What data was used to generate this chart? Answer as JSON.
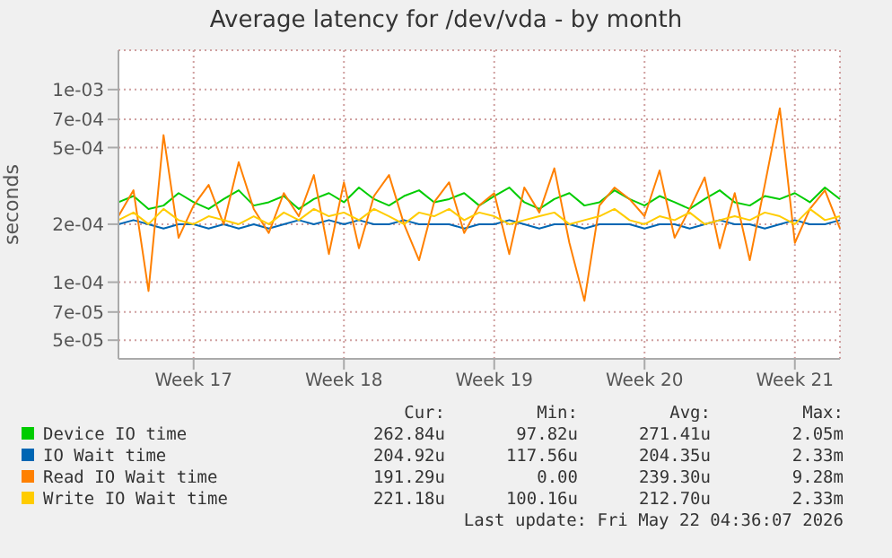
{
  "chart_data": {
    "type": "line",
    "title": "Average latency for /dev/vda - by month",
    "ylabel": "seconds",
    "categories": [
      null,
      null,
      null,
      null,
      null,
      "Week 17",
      null,
      null,
      null,
      null,
      null,
      null,
      null,
      null,
      null,
      "Week 18",
      null,
      null,
      null,
      null,
      null,
      null,
      null,
      null,
      null,
      "Week 19",
      null,
      null,
      null,
      null,
      null,
      null,
      null,
      null,
      null,
      "Week 20",
      null,
      null,
      null,
      null,
      null,
      null,
      null,
      null,
      null,
      "Week 21",
      null,
      null,
      null
    ],
    "log": "y",
    "ylim": [
      4e-05,
      0.0016
    ],
    "yticks": [
      {
        "value": 5e-05,
        "label": "5e-05"
      },
      {
        "value": 7e-05,
        "label": "7e-05"
      },
      {
        "value": 0.0001,
        "label": "1e-04"
      },
      {
        "value": 0.0002,
        "label": "2e-04"
      },
      {
        "value": 0.0005,
        "label": "5e-04"
      },
      {
        "value": 0.0007,
        "label": "7e-04"
      },
      {
        "value": 0.001,
        "label": "1e-03"
      }
    ],
    "grid": true,
    "legend": "bottom",
    "series": [
      {
        "name": "Device IO time",
        "color": "#00cc00",
        "values": [
          0.00026,
          0.00028,
          0.00024,
          0.00025,
          0.00029,
          0.00026,
          0.00024,
          0.00027,
          0.0003,
          0.00025,
          0.00026,
          0.00028,
          0.00024,
          0.00027,
          0.00029,
          0.00026,
          0.00031,
          0.00027,
          0.00025,
          0.00028,
          0.0003,
          0.00026,
          0.00027,
          0.00029,
          0.00025,
          0.00028,
          0.00031,
          0.00026,
          0.00024,
          0.00027,
          0.00029,
          0.00025,
          0.00026,
          0.0003,
          0.00027,
          0.00025,
          0.00028,
          0.00026,
          0.00024,
          0.00027,
          0.0003,
          0.00026,
          0.00025,
          0.00028,
          0.00027,
          0.00029,
          0.00026,
          0.00031,
          0.00027
        ]
      },
      {
        "name": "IO Wait time",
        "color": "#0066b3",
        "values": [
          0.0002,
          0.00021,
          0.0002,
          0.00019,
          0.0002,
          0.0002,
          0.00019,
          0.0002,
          0.00019,
          0.0002,
          0.00019,
          0.0002,
          0.00021,
          0.0002,
          0.00021,
          0.0002,
          0.00021,
          0.0002,
          0.0002,
          0.00021,
          0.0002,
          0.0002,
          0.0002,
          0.00019,
          0.0002,
          0.0002,
          0.00021,
          0.0002,
          0.00019,
          0.0002,
          0.0002,
          0.00019,
          0.0002,
          0.0002,
          0.0002,
          0.00019,
          0.0002,
          0.0002,
          0.00019,
          0.0002,
          0.00021,
          0.0002,
          0.0002,
          0.00019,
          0.0002,
          0.00021,
          0.0002,
          0.0002,
          0.00021
        ]
      },
      {
        "name": "Read IO Wait time",
        "color": "#ff8000",
        "values": [
          0.00022,
          0.0003,
          9e-05,
          0.00058,
          0.00017,
          0.00025,
          0.00032,
          0.0002,
          0.00042,
          0.00024,
          0.00018,
          0.00029,
          0.00022,
          0.00036,
          0.00014,
          0.00033,
          0.00015,
          0.00028,
          0.00036,
          0.0002,
          0.00013,
          0.00026,
          0.00033,
          0.00018,
          0.00025,
          0.00029,
          0.00014,
          0.00031,
          0.00023,
          0.00039,
          0.00016,
          8e-05,
          0.00025,
          0.00031,
          0.00027,
          0.00022,
          0.00038,
          0.00017,
          0.00024,
          0.00035,
          0.00015,
          0.00029,
          0.00013,
          0.00032,
          0.0008,
          0.00016,
          0.00024,
          0.0003,
          0.00019
        ]
      },
      {
        "name": "Write IO Wait time",
        "color": "#ffcc00",
        "values": [
          0.00021,
          0.00023,
          0.0002,
          0.00024,
          0.00021,
          0.0002,
          0.00022,
          0.00021,
          0.0002,
          0.00022,
          0.0002,
          0.00023,
          0.00021,
          0.00024,
          0.00022,
          0.00023,
          0.00021,
          0.00024,
          0.00022,
          0.0002,
          0.00023,
          0.00022,
          0.00024,
          0.00021,
          0.00023,
          0.00022,
          0.0002,
          0.00021,
          0.00022,
          0.00023,
          0.0002,
          0.00021,
          0.00022,
          0.00024,
          0.00021,
          0.0002,
          0.00022,
          0.00021,
          0.00023,
          0.0002,
          0.00021,
          0.00022,
          0.00021,
          0.00023,
          0.00022,
          0.0002,
          0.00024,
          0.00021,
          0.00022
        ]
      }
    ],
    "annotations": [
      "Cur:",
      "Min:",
      "Avg:",
      "Max:",
      "262.84u",
      "97.82u",
      "271.41u",
      "2.05m",
      "204.92u",
      "117.56u",
      "204.35u",
      "2.33m",
      "191.29u",
      "0.00",
      "239.30u",
      "9.28m",
      "221.18u",
      "100.16u",
      "212.70u",
      "2.33m",
      "Last update: Fri May 22 04:36:07 2026"
    ]
  }
}
